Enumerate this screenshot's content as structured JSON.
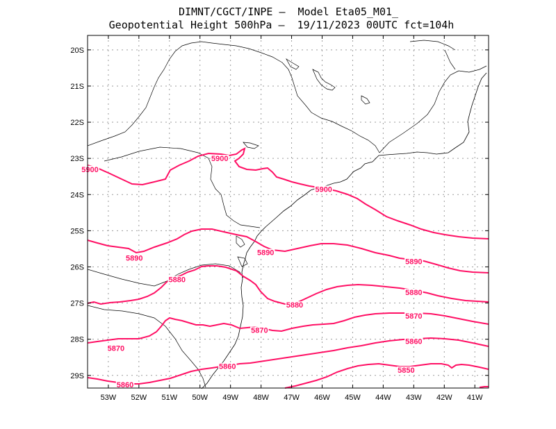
{
  "title": {
    "line1": "DIMNT/CGCT/INPE –  Model Eta05_M01_",
    "line2": "Geopotential Height 500hPa –  19/11/2023 00UTC fct=104h"
  },
  "colors": {
    "contour": "#ff0f64",
    "coast": "#000000",
    "grid": "#9a9a9a"
  },
  "axes": {
    "lat_ticks": [
      "20S",
      "21S",
      "22S",
      "23S",
      "24S",
      "25S",
      "26S",
      "27S",
      "28S",
      "29S"
    ],
    "lon_ticks": [
      "53W",
      "52W",
      "51W",
      "50W",
      "49W",
      "48W",
      "47W",
      "46W",
      "45W",
      "44W",
      "43W",
      "42W",
      "41W"
    ]
  },
  "contour_labels": [
    {
      "text": "5900",
      "lon": -49.35,
      "lat": -23.0
    },
    {
      "text": "5900",
      "lon": -53.6,
      "lat": -23.3
    },
    {
      "text": "5900",
      "lon": -45.95,
      "lat": -23.85
    },
    {
      "text": "5890",
      "lon": -52.15,
      "lat": -25.75
    },
    {
      "text": "5890",
      "lon": -47.85,
      "lat": -25.6
    },
    {
      "text": "5890",
      "lon": -43.0,
      "lat": -25.85
    },
    {
      "text": "5880",
      "lon": -50.75,
      "lat": -26.35
    },
    {
      "text": "5880",
      "lon": -46.9,
      "lat": -27.05
    },
    {
      "text": "5880",
      "lon": -43.0,
      "lat": -26.7
    },
    {
      "text": "5870",
      "lon": -52.75,
      "lat": -28.25
    },
    {
      "text": "5870",
      "lon": -48.05,
      "lat": -27.75
    },
    {
      "text": "5870",
      "lon": -43.0,
      "lat": -27.35
    },
    {
      "text": "5860",
      "lon": -49.1,
      "lat": -28.75
    },
    {
      "text": "5860",
      "lon": -43.0,
      "lat": -28.05
    },
    {
      "text": "5860",
      "lon": -52.45,
      "lat": -29.25
    },
    {
      "text": "5850",
      "lon": -43.25,
      "lat": -28.85
    }
  ]
}
